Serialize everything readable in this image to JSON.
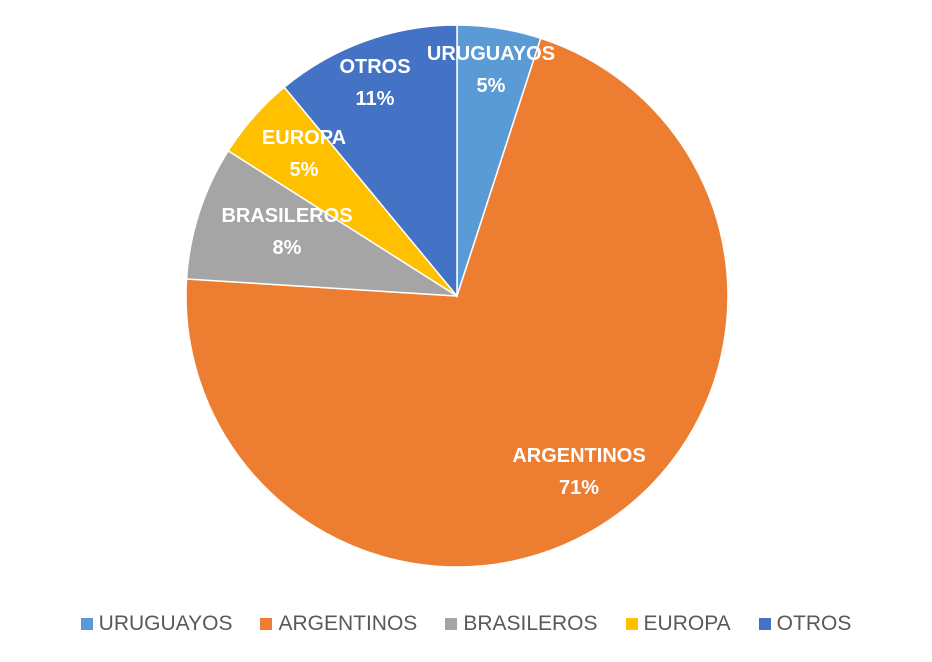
{
  "chart_data": {
    "type": "pie",
    "categories": [
      "URUGUAYOS",
      "ARGENTINOS",
      "BRASILEROS",
      "EUROPA",
      "OTROS"
    ],
    "values": [
      5,
      71,
      8,
      5,
      11
    ],
    "labels": [
      "5%",
      "71%",
      "8%",
      "5%",
      "11%"
    ],
    "colors": [
      "#5B9BD5",
      "#ED7D31",
      "#A5A5A5",
      "#FFC000",
      "#4472C4"
    ],
    "title": "",
    "legend_position": "bottom",
    "data_labels": "category and percentage, inside"
  }
}
